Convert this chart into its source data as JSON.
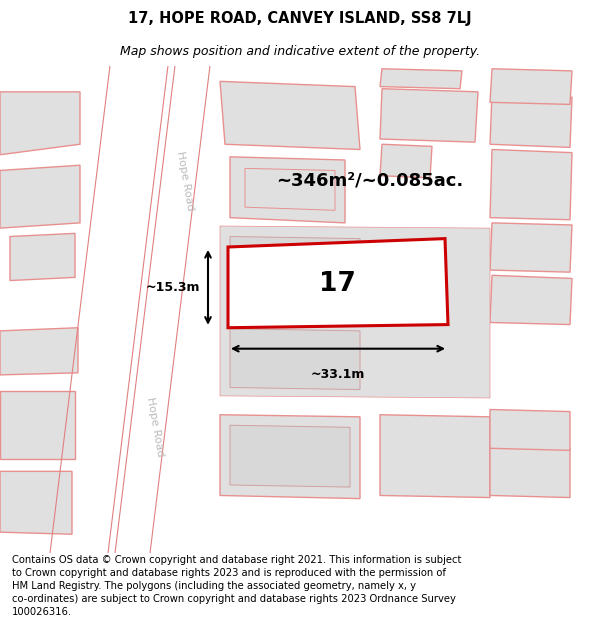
{
  "title": "17, HOPE ROAD, CANVEY ISLAND, SS8 7LJ",
  "subtitle": "Map shows position and indicative extent of the property.",
  "footer": "Contains OS data © Crown copyright and database right 2021. This information is subject\nto Crown copyright and database rights 2023 and is reproduced with the permission of\nHM Land Registry. The polygons (including the associated geometry, namely x, y\nco-ordinates) are subject to Crown copyright and database rights 2023 Ordnance Survey\n100026316.",
  "bg_color": "#eeeeee",
  "road_fill": "#ffffff",
  "building_fill": "#e0e0e0",
  "building_edge": "#e89090",
  "red_outline_color": "#cc0000",
  "area_text": "~346m²/~0.085ac.",
  "label_17": "17",
  "dim_width": "~33.1m",
  "dim_height": "~15.3m",
  "road_label": "Hope Road",
  "title_fontsize": 10.5,
  "subtitle_fontsize": 9,
  "footer_fontsize": 7.2
}
